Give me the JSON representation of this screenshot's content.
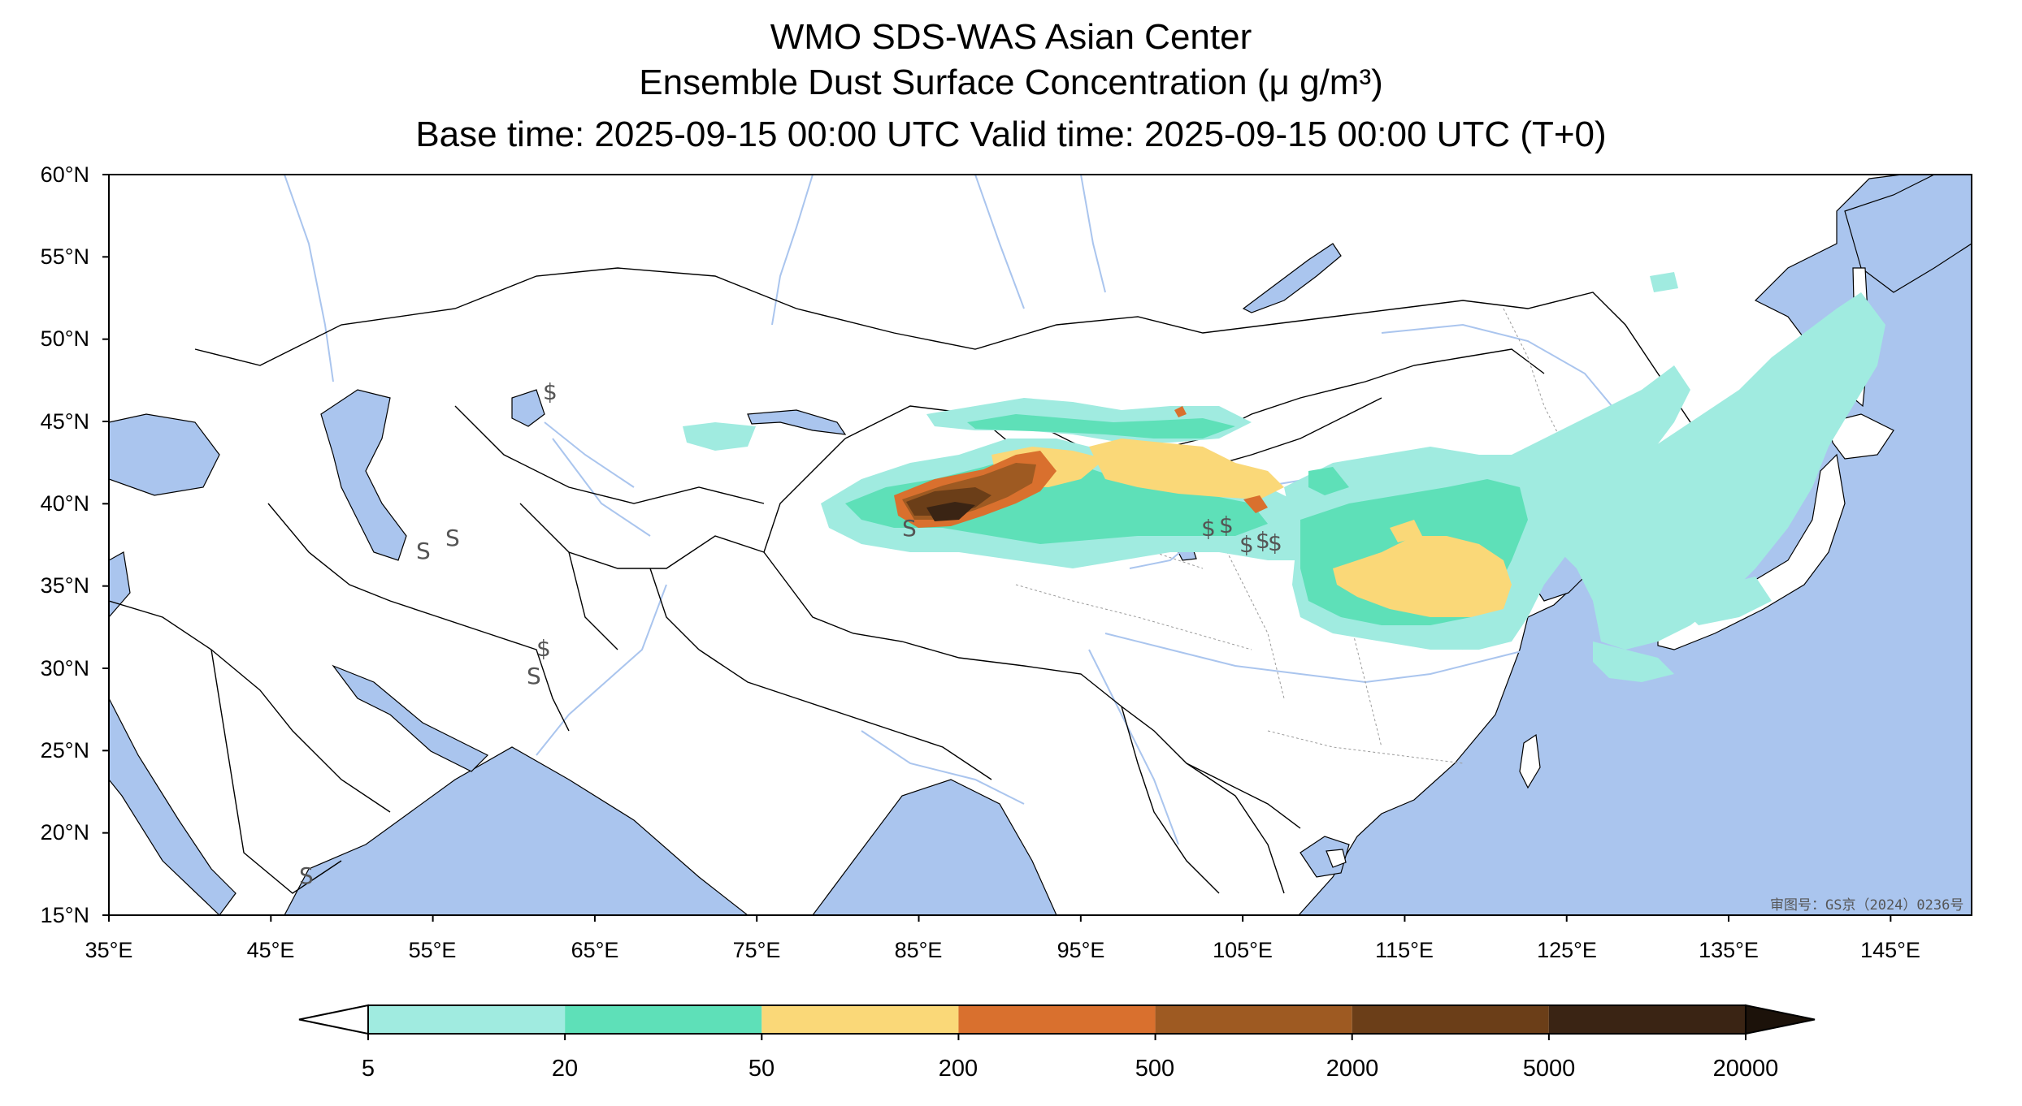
{
  "titles": {
    "line1": "WMO SDS-WAS Asian Center",
    "line2": "Ensemble Dust Surface Concentration (μ g/m³)",
    "line3": "Base time: 2025-09-15 00:00 UTC Valid time: 2025-09-15 00:00 UTC (T+0)"
  },
  "map": {
    "extent": {
      "lon_min": 35,
      "lon_max": 150,
      "lat_min": 15,
      "lat_max": 60
    },
    "lat_ticks": [
      "15°N",
      "20°N",
      "25°N",
      "30°N",
      "35°N",
      "40°N",
      "45°N",
      "50°N",
      "55°N",
      "60°N"
    ],
    "lon_ticks": [
      "35°E",
      "45°E",
      "55°E",
      "65°E",
      "75°E",
      "85°E",
      "95°E",
      "105°E",
      "115°E",
      "125°E",
      "135°E",
      "145°E"
    ],
    "colors": {
      "ocean": "#aac5ee",
      "land": "#ffffff",
      "rivers": "#aac5ee",
      "borders": "#000000"
    },
    "approval_number": "审图号：GS京（2024）0236号"
  },
  "colorbar": {
    "levels": [
      "5",
      "20",
      "50",
      "200",
      "500",
      "2000",
      "5000",
      "20000"
    ],
    "colors": [
      "#a0ebe0",
      "#5ee0b8",
      "#fad878",
      "#d9702e",
      "#9e5a22",
      "#6b3e18",
      "#3a2414"
    ],
    "under_color": "#ffffff",
    "over_color": "#1c120a"
  }
}
